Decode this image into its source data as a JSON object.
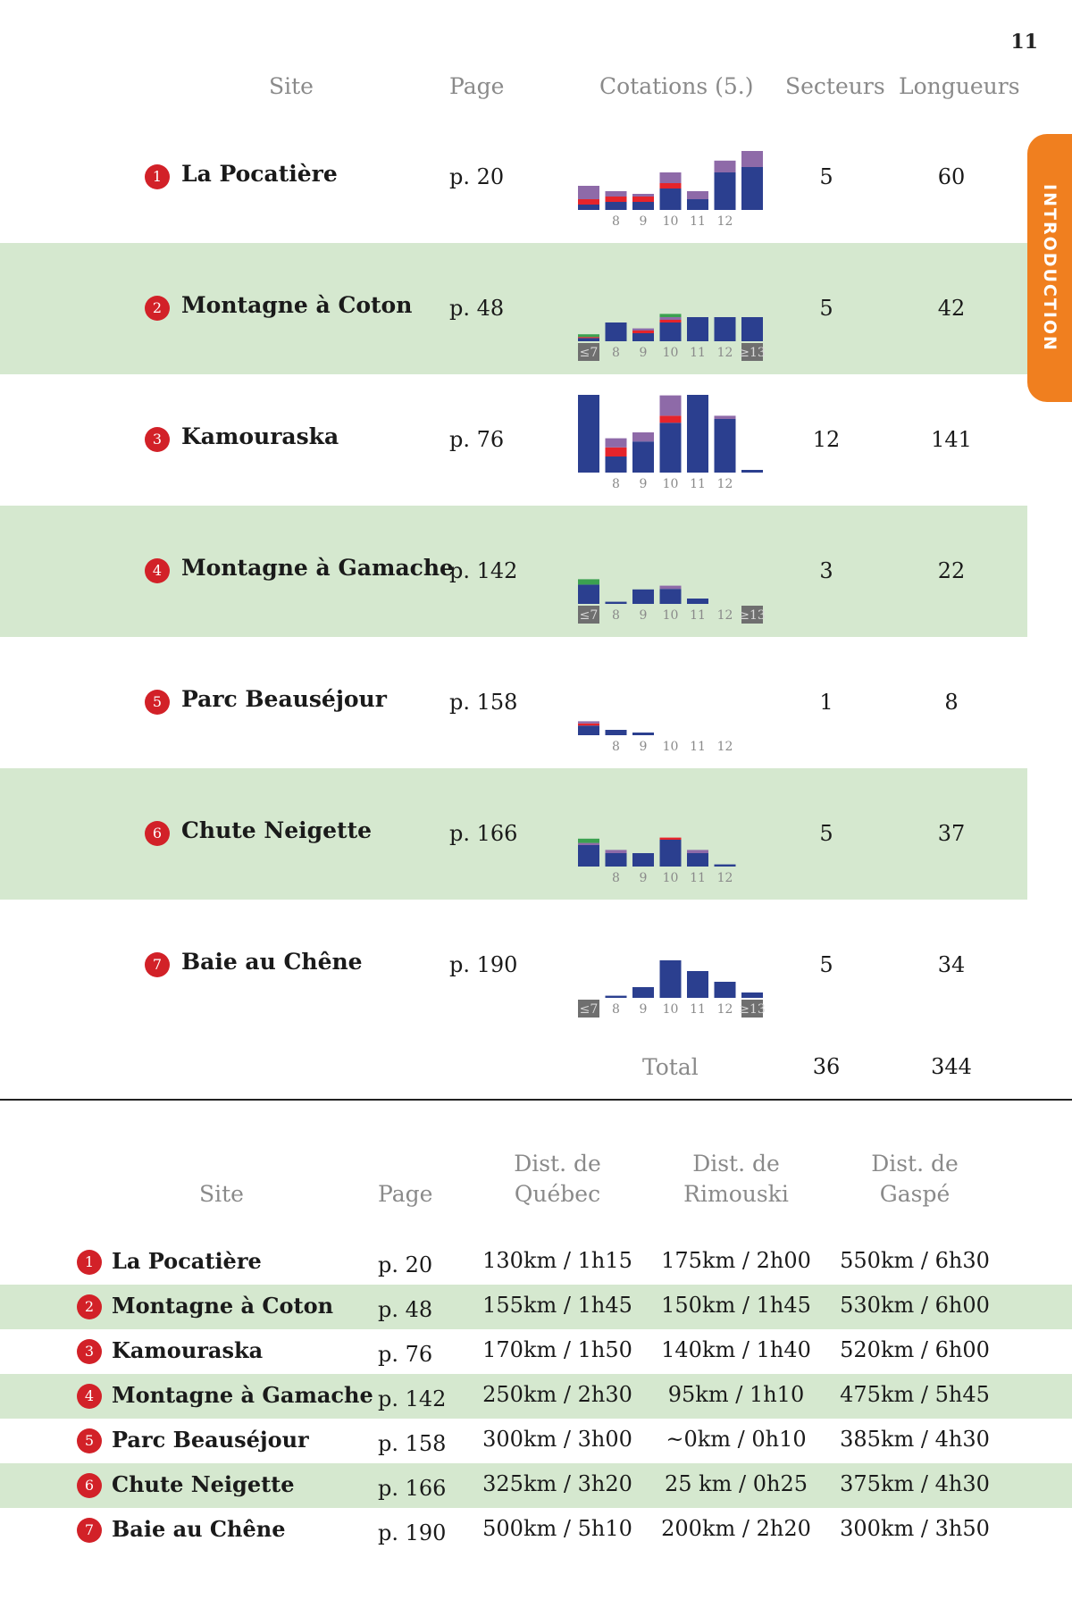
{
  "page_number": "11",
  "side_tab": "INTRODUCTION",
  "table1": {
    "headers": {
      "site": "Site",
      "page": "Page",
      "grades": "Cotations (5.)",
      "sectors": "Secteurs",
      "lengths": "Longueurs"
    },
    "rows": [
      {
        "num": "1",
        "site": "La Pocatière",
        "page": "p. 20",
        "sectors": "5",
        "lengths": "60"
      },
      {
        "num": "2",
        "site": "Montagne à Coton",
        "page": "p. 48",
        "sectors": "5",
        "lengths": "42"
      },
      {
        "num": "3",
        "site": "Kamouraska",
        "page": "p. 76",
        "sectors": "12",
        "lengths": "141"
      },
      {
        "num": "4",
        "site": "Montagne à Gamache",
        "page": "p. 142",
        "sectors": "3",
        "lengths": "22"
      },
      {
        "num": "5",
        "site": "Parc Beauséjour",
        "page": "p. 158",
        "sectors": "1",
        "lengths": "8"
      },
      {
        "num": "6",
        "site": "Chute Neigette",
        "page": "p. 166",
        "sectors": "5",
        "lengths": "37"
      },
      {
        "num": "7",
        "site": "Baie au Chêne",
        "page": "p. 190",
        "sectors": "5",
        "lengths": "34"
      }
    ],
    "total": {
      "label": "Total",
      "sectors": "36",
      "lengths": "344"
    }
  },
  "chart_data": [
    {
      "type": "bar",
      "stacked": true,
      "site": "La Pocatière",
      "categories": [
        "≤7",
        "8",
        "9",
        "10",
        "11",
        "12",
        "≥13"
      ],
      "shown_labels": [
        "8",
        "9",
        "10",
        "11",
        "12"
      ],
      "series": [
        {
          "color": "#2b3f8f",
          "values": [
            1,
            1.5,
            1.5,
            4,
            2,
            7,
            8
          ]
        },
        {
          "color": "#e5242b",
          "values": [
            1,
            1,
            1,
            1,
            0,
            0,
            0
          ]
        },
        {
          "color": "#8e6aa8",
          "values": [
            2.5,
            1,
            0.5,
            2,
            1.5,
            2.2,
            3
          ]
        },
        {
          "color": "#3ba150",
          "values": [
            0,
            0,
            0,
            0,
            0,
            0,
            0
          ]
        }
      ]
    },
    {
      "type": "bar",
      "stacked": true,
      "site": "Montagne à Coton",
      "categories": [
        "≤7",
        "8",
        "9",
        "10",
        "11",
        "12",
        "≥13"
      ],
      "shown_labels": [
        "≤7",
        "8",
        "9",
        "10",
        "11",
        "12",
        "≥13"
      ],
      "series": [
        {
          "color": "#2b3f8f",
          "values": [
            0.6,
            3.5,
            1.5,
            3.5,
            4.5,
            4.5,
            4.5
          ]
        },
        {
          "color": "#e5242b",
          "values": [
            0.2,
            0,
            0.5,
            0.5,
            0,
            0,
            0
          ]
        },
        {
          "color": "#8e6aa8",
          "values": [
            0,
            0,
            0.4,
            0.5,
            0,
            0,
            0
          ]
        },
        {
          "color": "#3ba150",
          "values": [
            0.5,
            0,
            0,
            0.6,
            0,
            0,
            0
          ]
        }
      ]
    },
    {
      "type": "bar",
      "stacked": true,
      "site": "Kamouraska",
      "categories": [
        "≤7",
        "8",
        "9",
        "10",
        "11",
        "12",
        "≥13"
      ],
      "shown_labels": [
        "8",
        "9",
        "10",
        "11",
        "12"
      ],
      "series": [
        {
          "color": "#2b3f8f",
          "values": [
            14.5,
            3,
            5.8,
            9.3,
            14.5,
            10,
            0.5
          ]
        },
        {
          "color": "#e5242b",
          "values": [
            0,
            1.7,
            0,
            1.3,
            0,
            0,
            0
          ]
        },
        {
          "color": "#8e6aa8",
          "values": [
            0,
            1.7,
            1.7,
            3.8,
            0,
            0.6,
            0
          ]
        },
        {
          "color": "#3ba150",
          "values": [
            0,
            0,
            0,
            0,
            0,
            0,
            0
          ]
        }
      ]
    },
    {
      "type": "bar",
      "stacked": true,
      "site": "Montagne à Gamache",
      "categories": [
        "≤7",
        "8",
        "9",
        "10",
        "11",
        "12",
        "≥13"
      ],
      "shown_labels": [
        "≤7",
        "8",
        "9",
        "10",
        "11",
        "12",
        "≥13"
      ],
      "series": [
        {
          "color": "#2b3f8f",
          "values": [
            3.6,
            0.4,
            2.7,
            2.8,
            1,
            0,
            0
          ]
        },
        {
          "color": "#e5242b",
          "values": [
            0,
            0,
            0,
            0,
            0,
            0,
            0
          ]
        },
        {
          "color": "#8e6aa8",
          "values": [
            0,
            0,
            0,
            0.6,
            0,
            0,
            0
          ]
        },
        {
          "color": "#3ba150",
          "values": [
            1,
            0,
            0,
            0,
            0,
            0,
            0
          ]
        }
      ]
    },
    {
      "type": "bar",
      "stacked": true,
      "site": "Parc Beauséjour",
      "categories": [
        "≤7",
        "8",
        "9",
        "10",
        "11",
        "12",
        "≥13"
      ],
      "shown_labels": [
        "8",
        "9",
        "10",
        "11",
        "12"
      ],
      "series": [
        {
          "color": "#2b3f8f",
          "values": [
            1.8,
            1,
            0.5,
            0,
            0,
            0,
            0
          ]
        },
        {
          "color": "#e5242b",
          "values": [
            0.4,
            0,
            0,
            0,
            0,
            0,
            0
          ]
        },
        {
          "color": "#8e6aa8",
          "values": [
            0.4,
            0,
            0,
            0,
            0,
            0,
            0
          ]
        },
        {
          "color": "#3ba150",
          "values": [
            0,
            0,
            0,
            0,
            0,
            0,
            0
          ]
        }
      ]
    },
    {
      "type": "bar",
      "stacked": true,
      "site": "Chute Neigette",
      "categories": [
        "≤7",
        "8",
        "9",
        "10",
        "11",
        "12",
        "≥13"
      ],
      "shown_labels": [
        "8",
        "9",
        "10",
        "11",
        "12"
      ],
      "series": [
        {
          "color": "#2b3f8f",
          "values": [
            4,
            2.5,
            2.5,
            5,
            2.5,
            0.4,
            0
          ]
        },
        {
          "color": "#e5242b",
          "values": [
            0,
            0,
            0,
            0.4,
            0,
            0,
            0
          ]
        },
        {
          "color": "#8e6aa8",
          "values": [
            0.4,
            0.6,
            0,
            0,
            0.6,
            0,
            0
          ]
        },
        {
          "color": "#3ba150",
          "values": [
            0.8,
            0,
            0,
            0,
            0,
            0,
            0
          ]
        }
      ]
    },
    {
      "type": "bar",
      "stacked": true,
      "site": "Baie au Chêne",
      "categories": [
        "≤7",
        "8",
        "9",
        "10",
        "11",
        "12",
        "≥13"
      ],
      "shown_labels": [
        "≤7",
        "8",
        "9",
        "10",
        "11",
        "12",
        "≥13"
      ],
      "series": [
        {
          "color": "#2b3f8f",
          "values": [
            0,
            0.4,
            2,
            7,
            5,
            3,
            1
          ]
        },
        {
          "color": "#e5242b",
          "values": [
            0,
            0,
            0,
            0,
            0,
            0,
            0
          ]
        },
        {
          "color": "#8e6aa8",
          "values": [
            0,
            0,
            0,
            0,
            0,
            0,
            0
          ]
        },
        {
          "color": "#3ba150",
          "values": [
            0,
            0,
            0,
            0,
            0,
            0,
            0
          ]
        }
      ]
    }
  ],
  "table2": {
    "headers": {
      "site": "Site",
      "page": "Page",
      "quebec_1": "Dist. de",
      "quebec_2": "Québec",
      "rimouski_1": "Dist. de",
      "rimouski_2": "Rimouski",
      "gaspe_1": "Dist. de",
      "gaspe_2": "Gaspé"
    },
    "rows": [
      {
        "num": "1",
        "site": "La Pocatière",
        "page": "p. 20",
        "quebec": "130km / 1h15",
        "rimouski": "175km / 2h00",
        "gaspe": "550km / 6h30"
      },
      {
        "num": "2",
        "site": "Montagne à Coton",
        "page": "p. 48",
        "quebec": "155km / 1h45",
        "rimouski": "150km / 1h45",
        "gaspe": "530km / 6h00"
      },
      {
        "num": "3",
        "site": "Kamouraska",
        "page": "p. 76",
        "quebec": "170km / 1h50",
        "rimouski": "140km / 1h40",
        "gaspe": "520km / 6h00"
      },
      {
        "num": "4",
        "site": "Montagne à Gamache",
        "page": "p. 142",
        "quebec": "250km / 2h30",
        "rimouski": "95km / 1h10",
        "gaspe": "475km / 5h45"
      },
      {
        "num": "5",
        "site": "Parc Beauséjour",
        "page": "p. 158",
        "quebec": "300km / 3h00",
        "rimouski": "~0km / 0h10",
        "gaspe": "385km / 4h30"
      },
      {
        "num": "6",
        "site": "Chute Neigette",
        "page": "p. 166",
        "quebec": "325km / 3h20",
        "rimouski": "25 km / 0h25",
        "gaspe": "375km / 4h30"
      },
      {
        "num": "7",
        "site": "Baie au Chêne",
        "page": "p. 190",
        "quebec": "500km / 5h10",
        "rimouski": "200km / 2h20",
        "gaspe": "300km / 3h50"
      }
    ]
  }
}
